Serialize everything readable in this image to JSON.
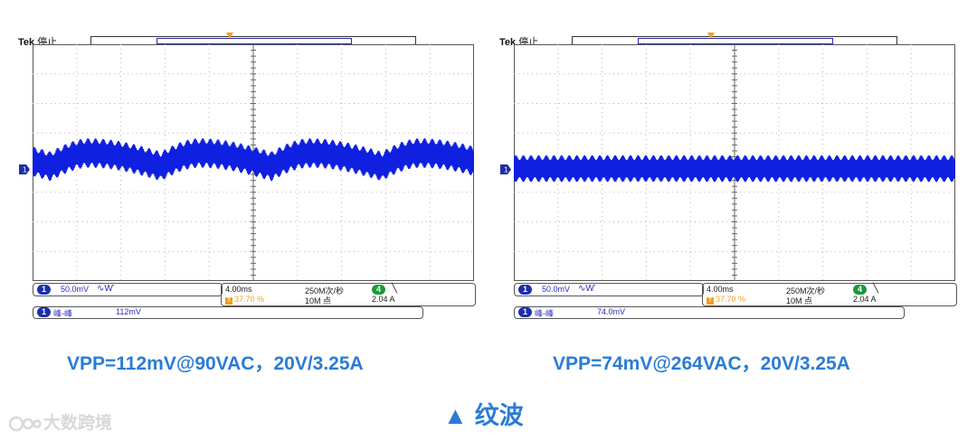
{
  "scopes": [
    {
      "brand": "Tek",
      "status": "停止",
      "channel_num": "1",
      "ch1_scale": "50.0mV",
      "ch1_coupling_icon": "bandwidth-icon",
      "time_scale": "4.00ms",
      "trigger_time": "37.70 %",
      "sample_rate": "250M次/秒",
      "record_length": "10M 点",
      "trigger_channel": "4",
      "trigger_slope_icon": "falling-edge-icon",
      "trigger_level": "2.04 A",
      "meas_channel": "1",
      "meas_name": "峰-峰",
      "meas_value": "112mV",
      "waveform": {
        "shape": "ripple-with-lowfreq-hump",
        "center_div": 0.55,
        "hump_amp_div": 0.45,
        "envelope_div": 1.0
      }
    },
    {
      "brand": "Tek",
      "status": "停止",
      "channel_num": "1",
      "ch1_scale": "50.0mV",
      "ch1_coupling_icon": "bandwidth-icon",
      "time_scale": "4.00ms",
      "trigger_time": "37.70 %",
      "sample_rate": "250M次/秒",
      "record_length": "10M 点",
      "trigger_channel": "4",
      "trigger_slope_icon": "falling-edge-icon",
      "trigger_level": "2.04 A",
      "meas_channel": "1",
      "meas_name": "峰-峰",
      "meas_value": "74.0mV",
      "waveform": {
        "shape": "flat-ripple",
        "center_div": 0.65,
        "hump_amp_div": 0,
        "envelope_div": 0.9
      }
    }
  ],
  "captions": {
    "left": "VPP=112mV@90VAC，20V/3.25A",
    "right": "VPP=74mV@264VAC，20V/3.25A"
  },
  "footer": {
    "icon": "triangle-up-icon",
    "label": "纹波"
  },
  "watermark": {
    "icon": "logo-icon",
    "text": "大数跨境"
  },
  "colors": {
    "trace": "#1020e0",
    "caption": "#2a7cd6",
    "grid": "#b8b8b8",
    "trigger": "#f0a020"
  }
}
